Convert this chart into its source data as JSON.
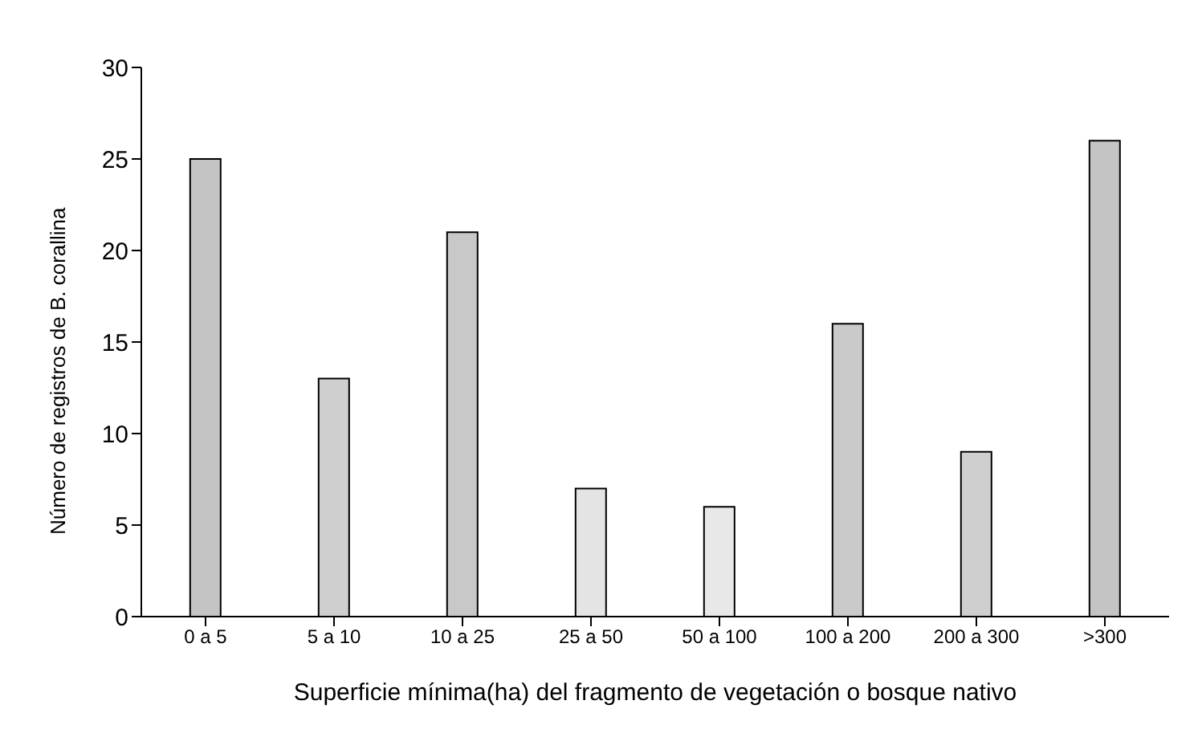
{
  "chart_data": {
    "type": "bar",
    "xlabel": "Superficie mínima(ha) del fragmento de vegetación o bosque nativo",
    "ylabel": "Número de registros de B. corallina",
    "categories": [
      "0 a 5",
      "5 a 10",
      "10 a 25",
      "25 a 50",
      "50 a 100",
      "100 a 200",
      "200 a 300",
      ">300"
    ],
    "values": [
      25,
      13,
      21,
      7,
      6,
      16,
      9,
      26
    ],
    "colors": [
      "#c4c4c4",
      "#cfcfcf",
      "#c8c8c8",
      "#e4e4e4",
      "#e8e8e8",
      "#cacaca",
      "#cfcfcf",
      "#c4c4c4"
    ],
    "ylim": [
      0,
      30
    ],
    "yticks": [
      0,
      5,
      10,
      15,
      20,
      25,
      30
    ],
    "grid": false
  }
}
